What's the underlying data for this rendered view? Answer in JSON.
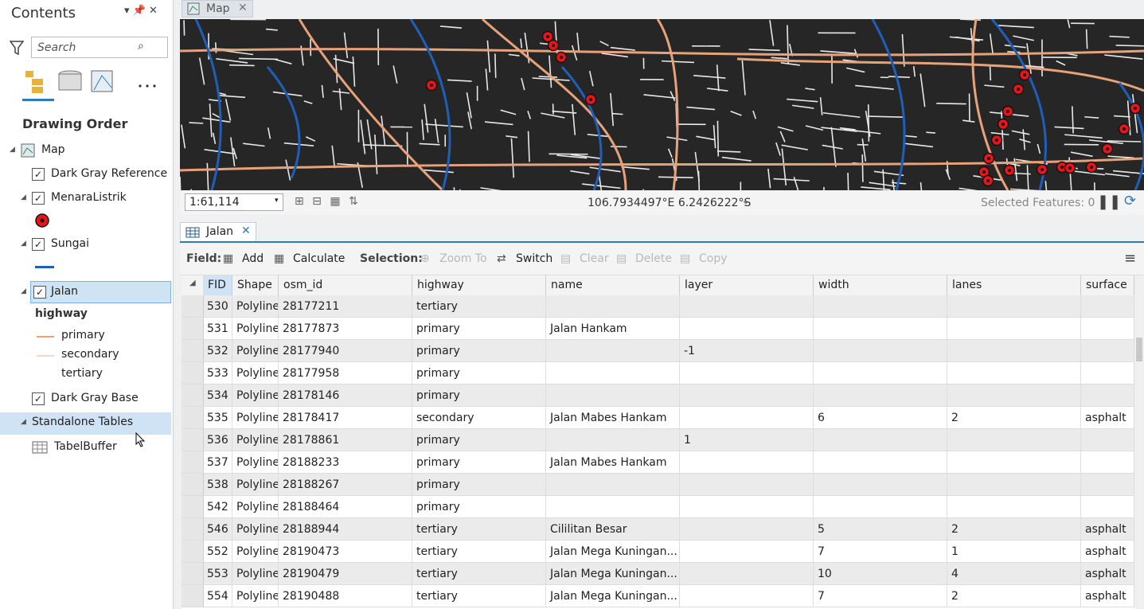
{
  "contents": {
    "title": "Contents",
    "search_placeholder": "Search",
    "heading": "Drawing Order",
    "layers": {
      "map": "Map",
      "dark_gray_reference": "Dark Gray Reference",
      "menara_listrik": "MenaraListrik",
      "sungai": "Sungai",
      "jalan": "Jalan",
      "legend_field": "highway",
      "legend_classes": [
        "primary",
        "secondary",
        "tertiary"
      ],
      "dark_gray_base": "Dark Gray Base",
      "standalone_tables": "Standalone Tables",
      "tabel_buffer": "TabelBuffer"
    }
  },
  "map_tab": "Map",
  "map_status": {
    "scale": "1:61,114",
    "coordinates": "106.7934497°E 6.2426222°S",
    "selected": "Selected Features: 0"
  },
  "table_tab": "Jalan",
  "toolbar": {
    "field_label": "Field:",
    "add": "Add",
    "calculate": "Calculate",
    "selection_label": "Selection:",
    "zoom_to": "Zoom To",
    "switch": "Switch",
    "clear": "Clear",
    "delete": "Delete",
    "copy": "Copy"
  },
  "table": {
    "columns": [
      "FID",
      "Shape",
      "osm_id",
      "highway",
      "name",
      "layer",
      "width",
      "lanes",
      "surface"
    ],
    "rows": [
      [
        530,
        "Polyline",
        28177211,
        "tertiary",
        null,
        null,
        null,
        null,
        null
      ],
      [
        531,
        "Polyline",
        28177873,
        "primary",
        "Jalan Hankam",
        null,
        null,
        null,
        null
      ],
      [
        532,
        "Polyline",
        28177940,
        "primary",
        null,
        -1,
        null,
        null,
        null
      ],
      [
        533,
        "Polyline",
        28177958,
        "primary",
        null,
        null,
        null,
        null,
        null
      ],
      [
        534,
        "Polyline",
        28178146,
        "primary",
        null,
        null,
        null,
        null,
        null
      ],
      [
        535,
        "Polyline",
        28178417,
        "secondary",
        "Jalan Mabes Hankam",
        null,
        6,
        2,
        "asphalt"
      ],
      [
        536,
        "Polyline",
        28178861,
        "primary",
        null,
        1,
        null,
        null,
        null
      ],
      [
        537,
        "Polyline",
        28188233,
        "primary",
        "Jalan Mabes Hankam",
        null,
        null,
        null,
        null
      ],
      [
        538,
        "Polyline",
        28188267,
        "primary",
        null,
        null,
        null,
        null,
        null
      ],
      [
        542,
        "Polyline",
        28188464,
        "primary",
        null,
        null,
        null,
        null,
        null
      ],
      [
        546,
        "Polyline",
        28188944,
        "tertiary",
        "Cililitan Besar",
        null,
        5,
        2,
        "asphalt"
      ],
      [
        552,
        "Polyline",
        28190473,
        "tertiary",
        "Jalan Mega Kuningan...",
        null,
        7,
        1,
        "asphalt"
      ],
      [
        553,
        "Polyline",
        28190479,
        "tertiary",
        "Jalan Mega Kuningan...",
        null,
        10,
        4,
        "asphalt"
      ],
      [
        554,
        "Polyline",
        28190488,
        "tertiary",
        "Jalan Mega Kuningan...",
        null,
        7,
        2,
        "asphalt"
      ]
    ]
  }
}
